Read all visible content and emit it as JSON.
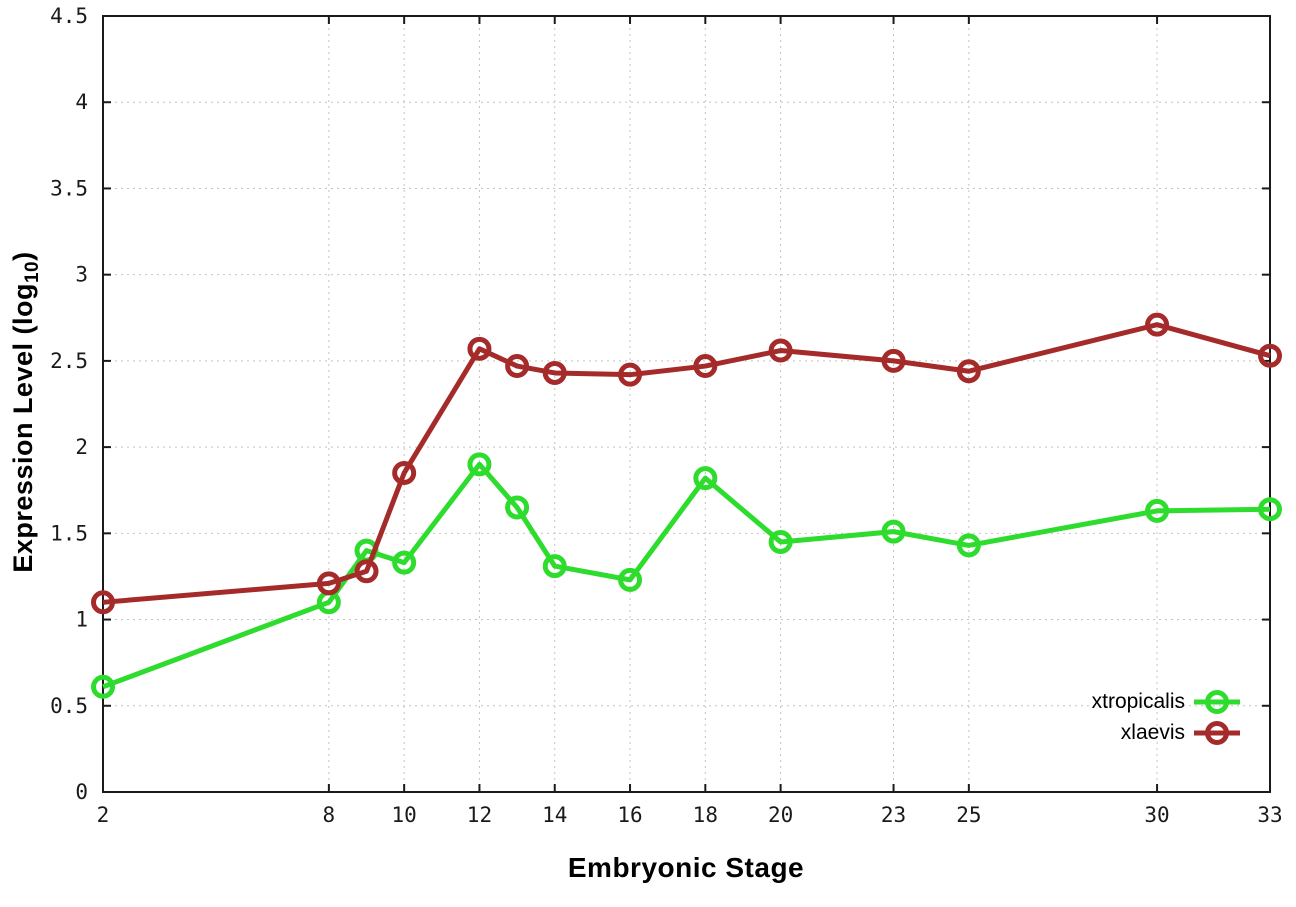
{
  "chart_data": {
    "type": "line",
    "xlabel": "Embryonic Stage",
    "ylabel": "Expression Level (log10)",
    "ylabel_prefix": "Expression Level (log",
    "ylabel_sub": "10",
    "ylabel_suffix": ")",
    "xlim": [
      2,
      33
    ],
    "ylim": [
      0,
      4.5
    ],
    "grid": true,
    "legend_position": "inside-bottom-right",
    "xticks": [
      2,
      8,
      10,
      12,
      14,
      16,
      18,
      20,
      23,
      25,
      30,
      33
    ],
    "xtick_labels": [
      "2",
      "8",
      "10",
      "12",
      "14",
      "16",
      "18",
      "20",
      "23",
      "25",
      "30",
      "33"
    ],
    "yticks": [
      0,
      0.5,
      1,
      1.5,
      2,
      2.5,
      3,
      3.5,
      4,
      4.5
    ],
    "ytick_labels": [
      "0",
      "0.5",
      "1",
      "1.5",
      "2",
      "2.5",
      "3",
      "3.5",
      "4",
      "4.5"
    ],
    "x": [
      2,
      8,
      9,
      10,
      12,
      13,
      14,
      16,
      18,
      20,
      23,
      25,
      30,
      33
    ],
    "series": [
      {
        "name": "xtropicalis",
        "color": "#2EDC2E",
        "values": [
          0.61,
          1.1,
          1.4,
          1.33,
          1.9,
          1.65,
          1.31,
          1.23,
          1.82,
          1.45,
          1.51,
          1.43,
          1.63,
          1.64
        ]
      },
      {
        "name": "xlaevis",
        "color": "#A52A2A",
        "values": [
          1.1,
          1.21,
          1.28,
          1.85,
          2.57,
          2.47,
          2.43,
          2.42,
          2.47,
          2.56,
          2.5,
          2.44,
          2.71,
          2.53
        ]
      }
    ],
    "style": {
      "axis_color": "#1a1a1a",
      "grid_color": "#c4c4c4",
      "background": "#ffffff",
      "line_width": 5,
      "marker": "open-circle",
      "marker_radius": 9.5,
      "marker_stroke": 5
    }
  }
}
